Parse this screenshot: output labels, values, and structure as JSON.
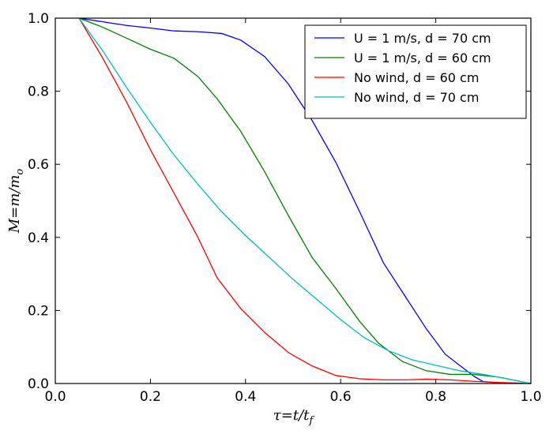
{
  "chart_data": {
    "type": "line",
    "title": "",
    "xlabel": "τ=t/t",
    "xlabel_sub": "f",
    "ylabel": "M=m/m",
    "ylabel_sub": "o",
    "xlim": [
      0.0,
      1.0
    ],
    "ylim": [
      0.0,
      1.0
    ],
    "xticks": [
      0.0,
      0.2,
      0.4,
      0.6,
      0.8,
      1.0
    ],
    "yticks": [
      0.0,
      0.2,
      0.4,
      0.6,
      0.8,
      1.0
    ],
    "xtick_labels": [
      "0.0",
      "0.2",
      "0.4",
      "0.6",
      "0.8",
      "1.0"
    ],
    "ytick_labels": [
      "0.0",
      "0.2",
      "0.4",
      "0.6",
      "0.8",
      "1.0"
    ],
    "grid": false,
    "legend_position": "top-right",
    "series": [
      {
        "name": "U = 1 m/s, d = 70 cm",
        "color": "#0000ff",
        "x": [
          0.05,
          0.1,
          0.15,
          0.2,
          0.25,
          0.3,
          0.35,
          0.39,
          0.44,
          0.49,
          0.54,
          0.59,
          0.64,
          0.69,
          0.74,
          0.78,
          0.82,
          0.85,
          0.88,
          0.9,
          0.93,
          1.0
        ],
        "y": [
          1.0,
          0.99,
          0.98,
          0.973,
          0.965,
          0.963,
          0.958,
          0.94,
          0.895,
          0.82,
          0.72,
          0.605,
          0.47,
          0.33,
          0.23,
          0.15,
          0.08,
          0.05,
          0.02,
          0.005,
          0.002,
          0.0
        ]
      },
      {
        "name": "U = 1 m/s, d = 60 cm",
        "color": "#008000",
        "x": [
          0.05,
          0.1,
          0.15,
          0.2,
          0.25,
          0.3,
          0.34,
          0.39,
          0.44,
          0.49,
          0.54,
          0.59,
          0.64,
          0.68,
          0.73,
          0.78,
          0.83,
          0.88,
          0.93,
          1.0
        ],
        "y": [
          1.0,
          0.975,
          0.945,
          0.915,
          0.89,
          0.84,
          0.78,
          0.69,
          0.58,
          0.46,
          0.345,
          0.26,
          0.17,
          0.11,
          0.06,
          0.035,
          0.025,
          0.025,
          0.018,
          0.0
        ]
      },
      {
        "name": "No wind, d = 60 cm",
        "color": "#ff0000",
        "x": [
          0.05,
          0.1,
          0.15,
          0.2,
          0.25,
          0.3,
          0.34,
          0.39,
          0.44,
          0.49,
          0.54,
          0.59,
          0.64,
          0.69,
          0.74,
          0.78,
          0.83,
          0.88,
          0.93,
          1.0
        ],
        "y": [
          1.0,
          0.89,
          0.77,
          0.64,
          0.52,
          0.4,
          0.29,
          0.205,
          0.14,
          0.085,
          0.048,
          0.022,
          0.013,
          0.01,
          0.01,
          0.012,
          0.01,
          0.006,
          0.003,
          0.0
        ]
      },
      {
        "name": "No wind, d = 70 cm",
        "color": "#00bfbf",
        "x": [
          0.05,
          0.1,
          0.15,
          0.2,
          0.25,
          0.3,
          0.35,
          0.4,
          0.45,
          0.5,
          0.55,
          0.6,
          0.65,
          0.7,
          0.75,
          0.8,
          0.85,
          0.9,
          0.95,
          1.0
        ],
        "y": [
          1.0,
          0.91,
          0.81,
          0.715,
          0.625,
          0.545,
          0.47,
          0.405,
          0.345,
          0.285,
          0.23,
          0.175,
          0.125,
          0.09,
          0.065,
          0.05,
          0.035,
          0.025,
          0.013,
          0.0
        ]
      }
    ]
  }
}
